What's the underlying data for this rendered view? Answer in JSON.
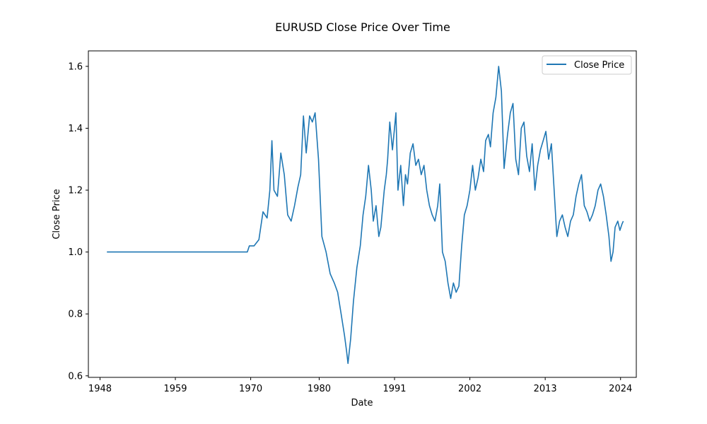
{
  "chart_data": {
    "type": "line",
    "title": "EURUSD Close Price Over Time",
    "xlabel": "Date",
    "ylabel": "Close Price",
    "xlim": [
      1946.3,
      2026.3
    ],
    "ylim": [
      0.595,
      1.65
    ],
    "xticks": [
      "1948",
      "1959",
      "1970",
      "1980",
      "1991",
      "2002",
      "2013",
      "2024"
    ],
    "yticks": [
      "0.6",
      "0.8",
      "1.0",
      "1.2",
      "1.4",
      "1.6"
    ],
    "grid": false,
    "legend": {
      "position": "top-right"
    },
    "series": [
      {
        "name": "Close Price",
        "color": "#1f77b4",
        "points": [
          [
            1949.0,
            1.0
          ],
          [
            1969.5,
            1.0
          ],
          [
            1969.8,
            1.02
          ],
          [
            1970.5,
            1.02
          ],
          [
            1971.2,
            1.04
          ],
          [
            1971.8,
            1.13
          ],
          [
            1972.4,
            1.11
          ],
          [
            1972.8,
            1.2
          ],
          [
            1973.1,
            1.36
          ],
          [
            1973.4,
            1.2
          ],
          [
            1973.9,
            1.18
          ],
          [
            1974.4,
            1.32
          ],
          [
            1974.9,
            1.25
          ],
          [
            1975.4,
            1.12
          ],
          [
            1975.9,
            1.1
          ],
          [
            1976.4,
            1.15
          ],
          [
            1976.9,
            1.21
          ],
          [
            1977.3,
            1.25
          ],
          [
            1977.7,
            1.44
          ],
          [
            1978.1,
            1.32
          ],
          [
            1978.6,
            1.44
          ],
          [
            1979.0,
            1.42
          ],
          [
            1979.4,
            1.45
          ],
          [
            1979.9,
            1.3
          ],
          [
            1980.4,
            1.05
          ],
          [
            1981.0,
            1.0
          ],
          [
            1981.6,
            0.93
          ],
          [
            1982.2,
            0.9
          ],
          [
            1982.7,
            0.87
          ],
          [
            1983.2,
            0.8
          ],
          [
            1983.7,
            0.73
          ],
          [
            1984.0,
            0.68
          ],
          [
            1984.2,
            0.64
          ],
          [
            1984.6,
            0.72
          ],
          [
            1985.0,
            0.84
          ],
          [
            1985.5,
            0.95
          ],
          [
            1986.0,
            1.02
          ],
          [
            1986.4,
            1.12
          ],
          [
            1986.8,
            1.18
          ],
          [
            1987.2,
            1.28
          ],
          [
            1987.6,
            1.2
          ],
          [
            1987.9,
            1.1
          ],
          [
            1988.3,
            1.15
          ],
          [
            1988.7,
            1.05
          ],
          [
            1989.0,
            1.08
          ],
          [
            1989.5,
            1.2
          ],
          [
            1989.8,
            1.25
          ],
          [
            1990.0,
            1.3
          ],
          [
            1990.3,
            1.42
          ],
          [
            1990.7,
            1.33
          ],
          [
            1991.0,
            1.4
          ],
          [
            1991.2,
            1.45
          ],
          [
            1991.5,
            1.2
          ],
          [
            1991.9,
            1.28
          ],
          [
            1992.3,
            1.15
          ],
          [
            1992.6,
            1.25
          ],
          [
            1992.9,
            1.22
          ],
          [
            1993.3,
            1.32
          ],
          [
            1993.7,
            1.35
          ],
          [
            1994.1,
            1.28
          ],
          [
            1994.5,
            1.3
          ],
          [
            1994.9,
            1.25
          ],
          [
            1995.3,
            1.28
          ],
          [
            1995.7,
            1.2
          ],
          [
            1996.1,
            1.15
          ],
          [
            1996.5,
            1.12
          ],
          [
            1996.9,
            1.1
          ],
          [
            1997.3,
            1.15
          ],
          [
            1997.6,
            1.22
          ],
          [
            1998.0,
            1.0
          ],
          [
            1998.4,
            0.97
          ],
          [
            1998.8,
            0.9
          ],
          [
            1999.2,
            0.85
          ],
          [
            1999.6,
            0.9
          ],
          [
            2000.0,
            0.87
          ],
          [
            2000.4,
            0.89
          ],
          [
            2000.8,
            1.02
          ],
          [
            2001.2,
            1.12
          ],
          [
            2001.6,
            1.15
          ],
          [
            2002.0,
            1.2
          ],
          [
            2002.4,
            1.28
          ],
          [
            2002.8,
            1.2
          ],
          [
            2003.2,
            1.24
          ],
          [
            2003.6,
            1.3
          ],
          [
            2004.0,
            1.26
          ],
          [
            2004.3,
            1.36
          ],
          [
            2004.7,
            1.38
          ],
          [
            2005.0,
            1.34
          ],
          [
            2005.4,
            1.45
          ],
          [
            2005.8,
            1.5
          ],
          [
            2006.2,
            1.6
          ],
          [
            2006.6,
            1.52
          ],
          [
            2007.0,
            1.27
          ],
          [
            2007.5,
            1.38
          ],
          [
            2007.9,
            1.45
          ],
          [
            2008.3,
            1.48
          ],
          [
            2008.7,
            1.3
          ],
          [
            2009.1,
            1.25
          ],
          [
            2009.5,
            1.4
          ],
          [
            2009.9,
            1.42
          ],
          [
            2010.3,
            1.31
          ],
          [
            2010.7,
            1.26
          ],
          [
            2011.1,
            1.35
          ],
          [
            2011.5,
            1.2
          ],
          [
            2011.9,
            1.28
          ],
          [
            2012.3,
            1.33
          ],
          [
            2012.7,
            1.36
          ],
          [
            2013.1,
            1.39
          ],
          [
            2013.5,
            1.3
          ],
          [
            2013.9,
            1.35
          ],
          [
            2014.3,
            1.2
          ],
          [
            2014.7,
            1.05
          ],
          [
            2015.1,
            1.1
          ],
          [
            2015.5,
            1.12
          ],
          [
            2015.9,
            1.08
          ],
          [
            2016.3,
            1.05
          ],
          [
            2016.7,
            1.1
          ],
          [
            2017.1,
            1.12
          ],
          [
            2017.5,
            1.18
          ],
          [
            2017.9,
            1.22
          ],
          [
            2018.3,
            1.25
          ],
          [
            2018.7,
            1.15
          ],
          [
            2019.1,
            1.13
          ],
          [
            2019.5,
            1.1
          ],
          [
            2019.9,
            1.12
          ],
          [
            2020.3,
            1.15
          ],
          [
            2020.7,
            1.2
          ],
          [
            2021.1,
            1.22
          ],
          [
            2021.5,
            1.18
          ],
          [
            2021.9,
            1.12
          ],
          [
            2022.3,
            1.05
          ],
          [
            2022.6,
            0.97
          ],
          [
            2022.9,
            1.0
          ],
          [
            2023.2,
            1.08
          ],
          [
            2023.6,
            1.1
          ],
          [
            2023.9,
            1.07
          ],
          [
            2024.2,
            1.09
          ],
          [
            2024.4,
            1.1
          ]
        ]
      }
    ]
  }
}
